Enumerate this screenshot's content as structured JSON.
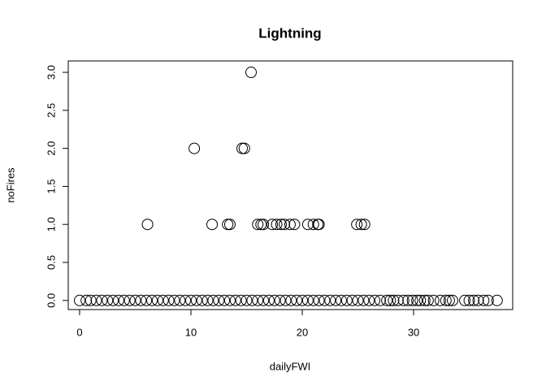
{
  "chart_data": {
    "type": "scatter",
    "title": "Lightning",
    "x_label": "dailyFWI",
    "y_label": "noFires",
    "xlim": [
      -1.02,
      38.9
    ],
    "ylim": [
      -0.12,
      3.15
    ],
    "xticks": [
      0,
      10,
      20,
      30
    ],
    "yticks": [
      {
        "value": 0,
        "label": "0.0"
      },
      {
        "value": 0.5,
        "label": "0.5"
      },
      {
        "value": 1,
        "label": "1.0"
      },
      {
        "value": 1.5,
        "label": "1.5"
      },
      {
        "value": 2,
        "label": "2.0"
      },
      {
        "value": 2.5,
        "label": "2.5"
      },
      {
        "value": 3,
        "label": "3.0"
      }
    ],
    "color": "#000000",
    "x": [
      0,
      0.6,
      1.0,
      1.5,
      2.0,
      2.5,
      3.0,
      3.5,
      4.0,
      4.5,
      5.0,
      5.5,
      6.0,
      6.5,
      7.0,
      7.5,
      8.0,
      8.5,
      9.0,
      9.5,
      10.0,
      10.5,
      11.0,
      11.5,
      12.0,
      12.5,
      13.0,
      13.5,
      14.0,
      14.5,
      15.0,
      15.5,
      16.0,
      16.5,
      17.0,
      17.5,
      18.0,
      18.5,
      19.0,
      19.5,
      20.0,
      20.5,
      21.0,
      21.5,
      22.0,
      22.5,
      23.0,
      23.5,
      24.0,
      24.5,
      25.0,
      25.5,
      26.0,
      26.5,
      27.0,
      27.6,
      27.9,
      28.2,
      28.6,
      29.1,
      29.5,
      29.9,
      30.3,
      30.6,
      31.0,
      31.3,
      31.8,
      32.4,
      32.9,
      33.2,
      33.5,
      34.6,
      35.0,
      35.4,
      35.8,
      36.3,
      36.7,
      37.5,
      6.1,
      11.9,
      13.3,
      13.5,
      16.0,
      16.3,
      16.5,
      17.3,
      17.7,
      18.1,
      18.4,
      18.9,
      19.3,
      20.5,
      21.0,
      21.4,
      21.5,
      24.9,
      25.3,
      25.6,
      10.3,
      14.6,
      14.8,
      15.4
    ],
    "y": [
      0,
      0,
      0,
      0,
      0,
      0,
      0,
      0,
      0,
      0,
      0,
      0,
      0,
      0,
      0,
      0,
      0,
      0,
      0,
      0,
      0,
      0,
      0,
      0,
      0,
      0,
      0,
      0,
      0,
      0,
      0,
      0,
      0,
      0,
      0,
      0,
      0,
      0,
      0,
      0,
      0,
      0,
      0,
      0,
      0,
      0,
      0,
      0,
      0,
      0,
      0,
      0,
      0,
      0,
      0,
      0,
      0,
      0,
      0,
      0,
      0,
      0,
      0,
      0,
      0,
      0,
      0,
      0,
      0,
      0,
      0,
      0,
      0,
      0,
      0,
      0,
      0,
      0,
      1,
      1,
      1,
      1,
      1,
      1,
      1,
      1,
      1,
      1,
      1,
      1,
      1,
      1,
      1,
      1,
      1,
      1,
      1,
      1,
      2,
      2,
      2,
      3
    ]
  }
}
